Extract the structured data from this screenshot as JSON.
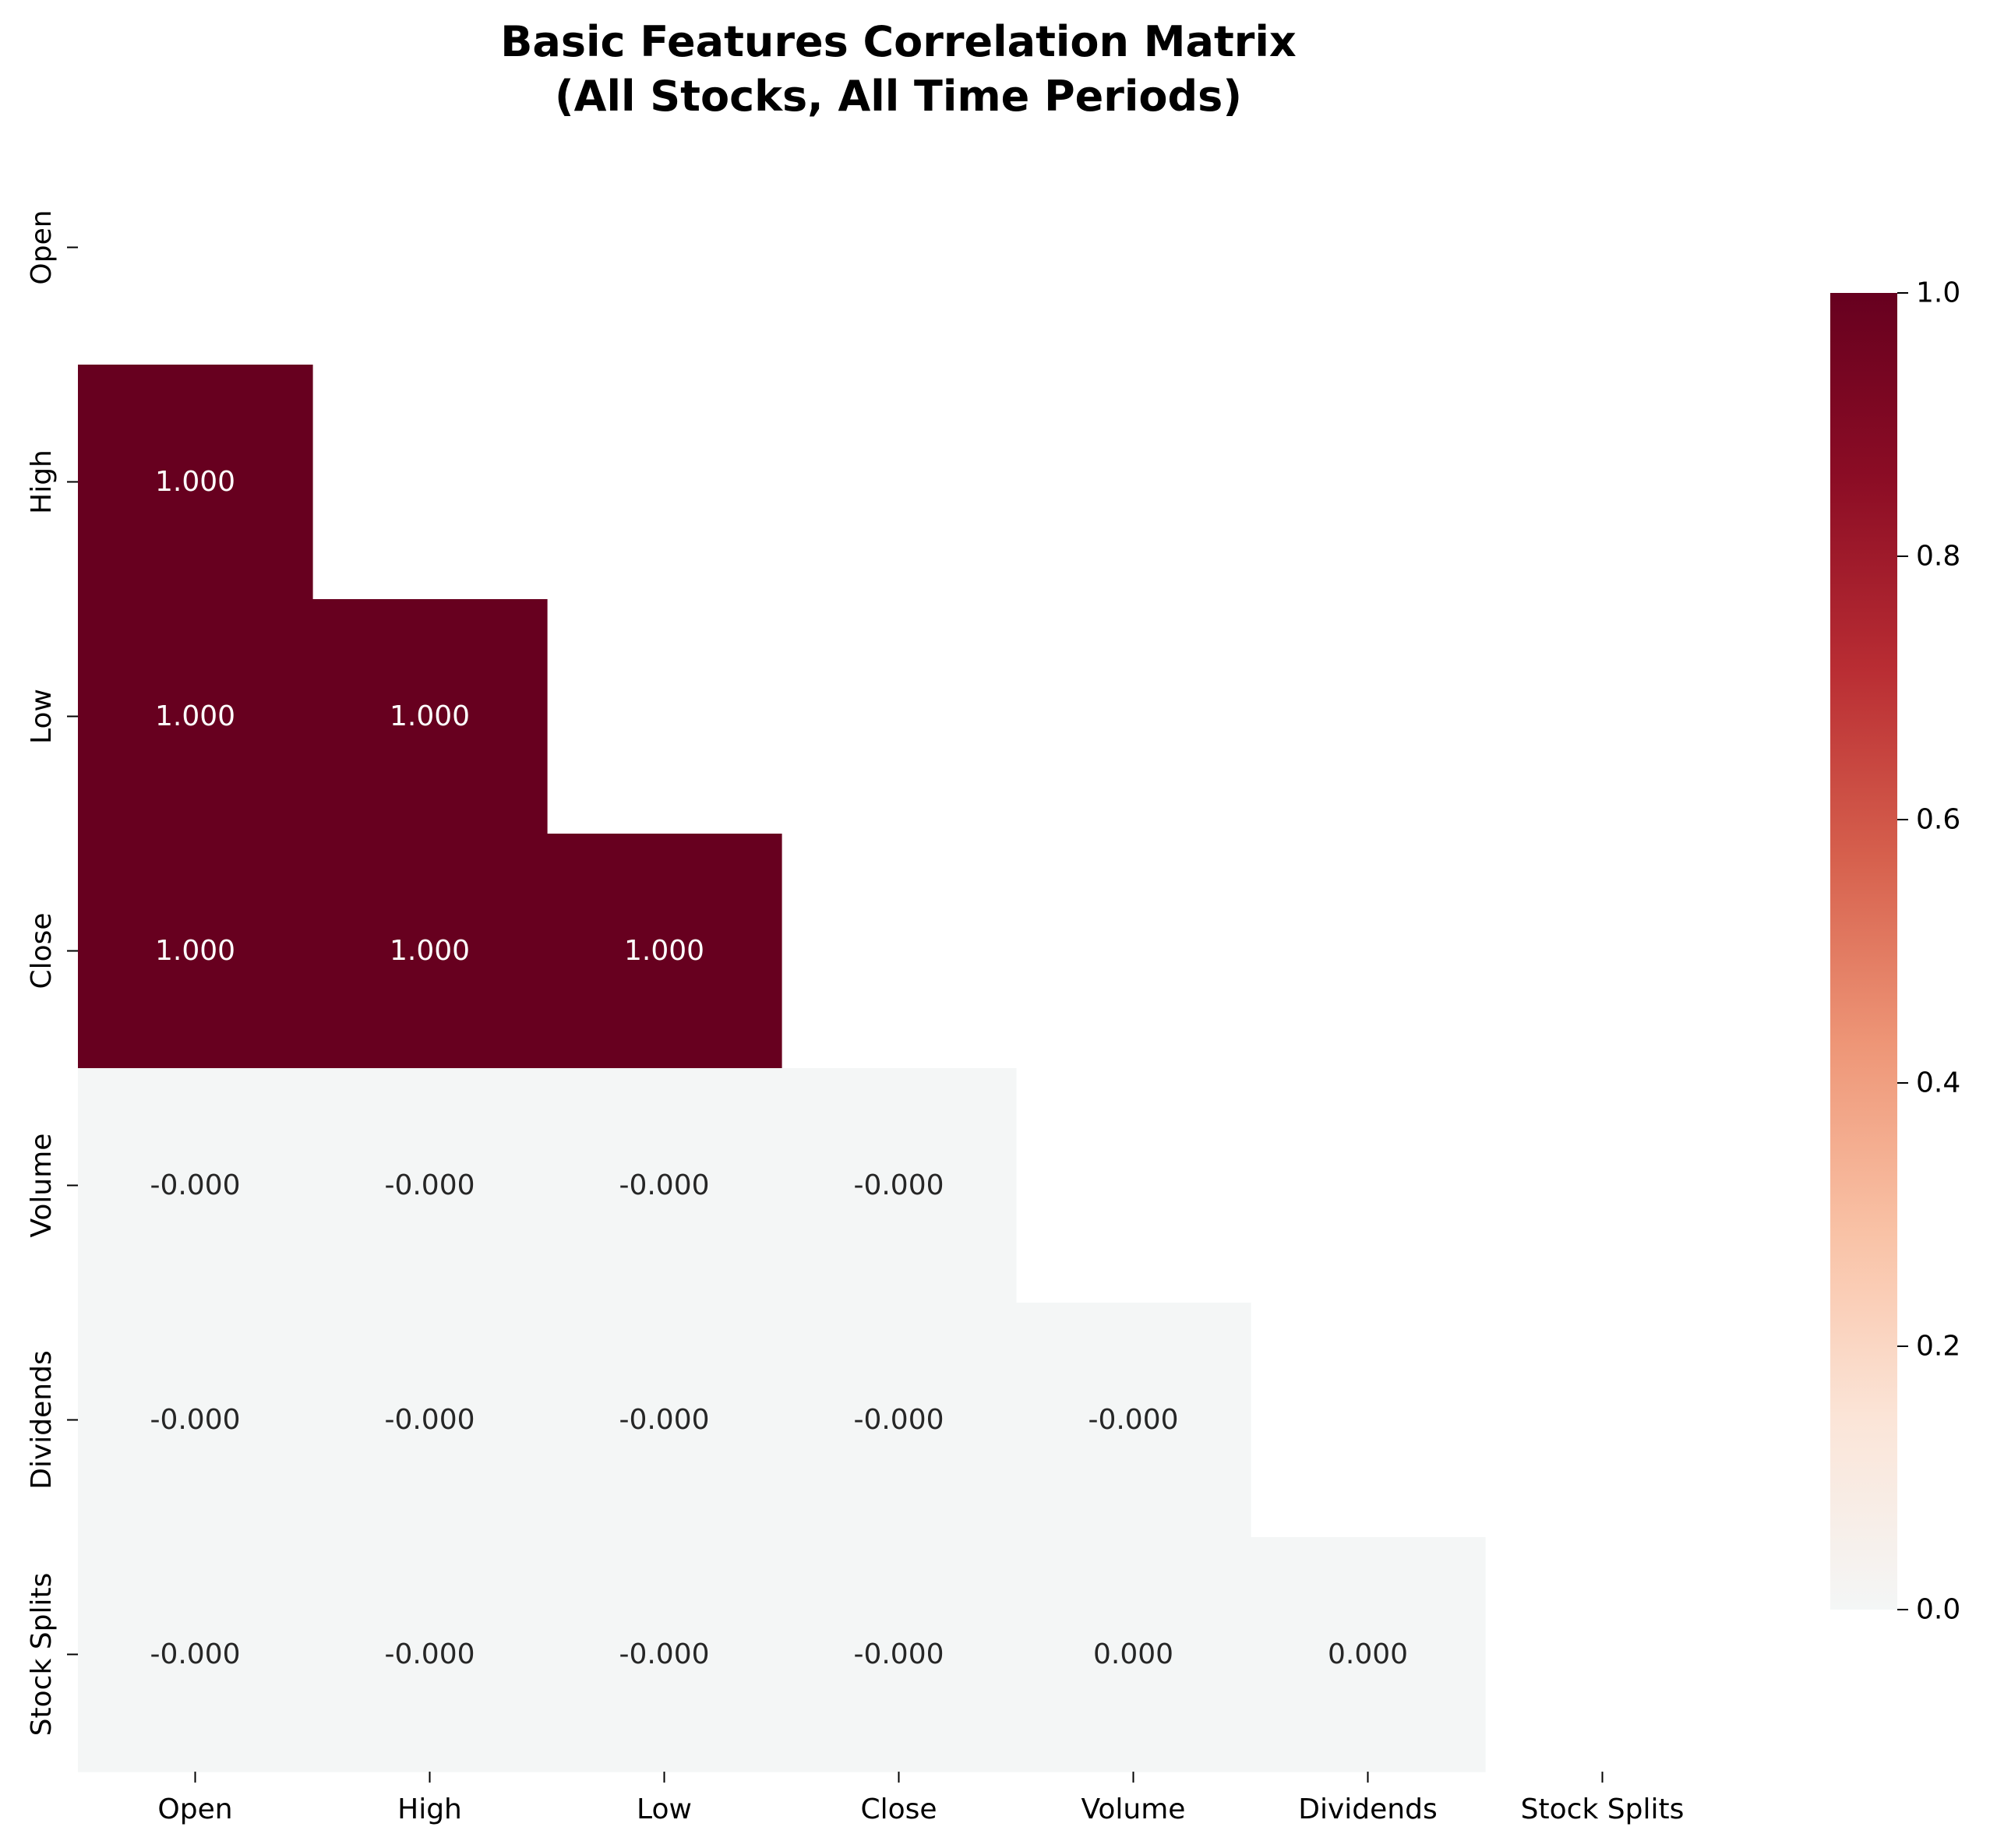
{
  "chart_data": {
    "type": "heatmap",
    "title": "Basic Features Correlation Matrix\n(All Stocks, All Time Periods)",
    "title_lines": [
      "Basic Features Correlation Matrix",
      "(All Stocks, All Time Periods)"
    ],
    "variables": [
      "Open",
      "High",
      "Low",
      "Close",
      "Volume",
      "Dividends",
      "Stock Splits"
    ],
    "mask": "upper-triangle-including-diagonal",
    "cells": [
      {
        "row": "High",
        "col": "Open",
        "value": 1.0,
        "label": "1.000"
      },
      {
        "row": "Low",
        "col": "Open",
        "value": 1.0,
        "label": "1.000"
      },
      {
        "row": "Low",
        "col": "High",
        "value": 1.0,
        "label": "1.000"
      },
      {
        "row": "Close",
        "col": "Open",
        "value": 1.0,
        "label": "1.000"
      },
      {
        "row": "Close",
        "col": "High",
        "value": 1.0,
        "label": "1.000"
      },
      {
        "row": "Close",
        "col": "Low",
        "value": 1.0,
        "label": "1.000"
      },
      {
        "row": "Volume",
        "col": "Open",
        "value": -0.0,
        "label": "-0.000"
      },
      {
        "row": "Volume",
        "col": "High",
        "value": -0.0,
        "label": "-0.000"
      },
      {
        "row": "Volume",
        "col": "Low",
        "value": -0.0,
        "label": "-0.000"
      },
      {
        "row": "Volume",
        "col": "Close",
        "value": -0.0,
        "label": "-0.000"
      },
      {
        "row": "Dividends",
        "col": "Open",
        "value": -0.0,
        "label": "-0.000"
      },
      {
        "row": "Dividends",
        "col": "High",
        "value": -0.0,
        "label": "-0.000"
      },
      {
        "row": "Dividends",
        "col": "Low",
        "value": -0.0,
        "label": "-0.000"
      },
      {
        "row": "Dividends",
        "col": "Close",
        "value": -0.0,
        "label": "-0.000"
      },
      {
        "row": "Dividends",
        "col": "Volume",
        "value": -0.0,
        "label": "-0.000"
      },
      {
        "row": "Stock Splits",
        "col": "Open",
        "value": -0.0,
        "label": "-0.000"
      },
      {
        "row": "Stock Splits",
        "col": "High",
        "value": -0.0,
        "label": "-0.000"
      },
      {
        "row": "Stock Splits",
        "col": "Low",
        "value": -0.0,
        "label": "-0.000"
      },
      {
        "row": "Stock Splits",
        "col": "Close",
        "value": -0.0,
        "label": "-0.000"
      },
      {
        "row": "Stock Splits",
        "col": "Volume",
        "value": 0.0,
        "label": "0.000"
      },
      {
        "row": "Stock Splits",
        "col": "Dividends",
        "value": 0.0,
        "label": "0.000"
      }
    ],
    "colorbar": {
      "range": [
        0.0,
        1.0
      ],
      "ticks": [
        0.0,
        0.2,
        0.4,
        0.6,
        0.8,
        1.0
      ],
      "tick_labels": [
        "0.0",
        "0.2",
        "0.4",
        "0.6",
        "0.8",
        "1.0"
      ],
      "colormap": "RdBu_r",
      "colors": [
        "#f4f6f6",
        "#fbe5d8",
        "#f9c2a6",
        "#ee9677",
        "#d6604d",
        "#b92d33",
        "#8c0d25",
        "#67001f"
      ]
    },
    "text_colors": {
      "dark_cell": "#ffffff",
      "light_cell": "#262626"
    },
    "grid": false,
    "legend": "colorbar-right"
  }
}
